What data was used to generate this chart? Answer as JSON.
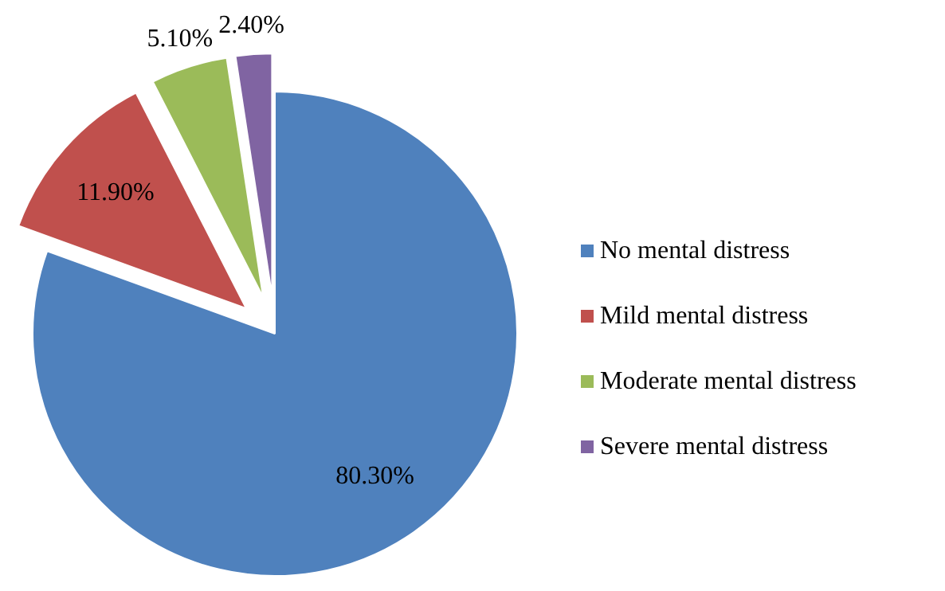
{
  "chart_data": {
    "type": "pie",
    "categories": [
      "No mental distress",
      "Mild mental distress",
      "Moderate mental distress",
      "Severe mental distress"
    ],
    "values": [
      80.3,
      11.9,
      5.1,
      2.4
    ],
    "colors": [
      "#4f81bd",
      "#c0504d",
      "#9bbb59",
      "#8064a2"
    ],
    "value_labels": [
      "80.30%",
      "11.90%",
      "5.10%",
      "2.40%"
    ],
    "legend": "right"
  }
}
